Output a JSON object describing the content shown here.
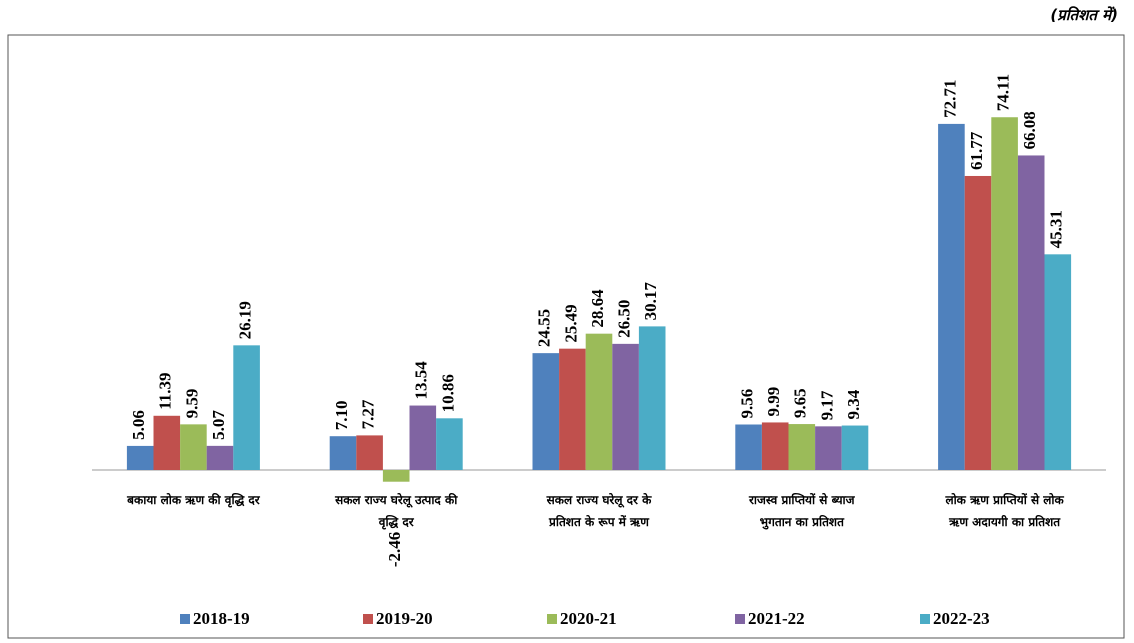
{
  "chart_data": {
    "type": "bar",
    "subtitle": "(प्रतिशत में)",
    "categories": [
      [
        "बकाया लोक ऋण की वृद्धि दर"
      ],
      [
        "सकल राज्य घरेलू उत्पाद की",
        "वृद्धि दर"
      ],
      [
        "सकल राज्य घरेलू दर के",
        "प्रतिशत के रूप में ऋण"
      ],
      [
        "राजस्व प्राप्तियों से ब्याज",
        "भुगतान का प्रतिशत"
      ],
      [
        "लोक ऋण प्राप्तियों से लोक",
        "ऋण अदायगी का प्रतिशत"
      ]
    ],
    "series": [
      {
        "name": "2018-19",
        "color": "#4f81bd",
        "values": [
          5.06,
          7.1,
          24.55,
          9.56,
          72.71
        ],
        "value_labels": [
          "5.06",
          "7.10",
          "24.55",
          "9.56",
          "72.71"
        ]
      },
      {
        "name": "2019-20",
        "color": "#c0504d",
        "values": [
          11.39,
          7.27,
          25.49,
          9.99,
          61.77
        ],
        "value_labels": [
          "11.39",
          "7.27",
          "25.49",
          "9.99",
          "61.77"
        ]
      },
      {
        "name": "2020-21",
        "color": "#9bbb59",
        "values": [
          9.59,
          -2.46,
          28.64,
          9.65,
          74.11
        ],
        "value_labels": [
          "9.59",
          "-2.46",
          "28.64",
          "9.65",
          "74.11"
        ]
      },
      {
        "name": "2021-22",
        "color": "#8064a2",
        "values": [
          5.07,
          13.54,
          26.5,
          9.17,
          66.08
        ],
        "value_labels": [
          "5.07",
          "13.54",
          "26.50",
          "9.17",
          "66.08"
        ]
      },
      {
        "name": "2022-23",
        "color": "#4bacc6",
        "values": [
          26.19,
          10.86,
          30.17,
          9.34,
          45.31
        ],
        "value_labels": [
          "26.19",
          "10.86",
          "30.17",
          "9.34",
          "45.31"
        ]
      }
    ],
    "ylim": [
      -5,
      80
    ],
    "legend": "bottom"
  }
}
